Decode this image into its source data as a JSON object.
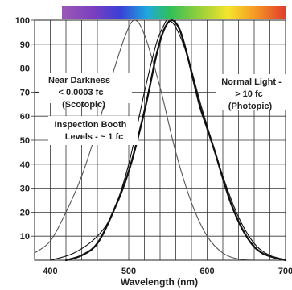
{
  "chart_data": {
    "type": "line",
    "title": "",
    "xlabel": "Wavelength (nm)",
    "ylabel": "",
    "xlim": [
      380,
      700
    ],
    "ylim": [
      0,
      100
    ],
    "x_ticks": [
      400,
      500,
      600,
      700
    ],
    "y_ticks": [
      10,
      20,
      30,
      40,
      50,
      60,
      70,
      80,
      90,
      100
    ],
    "grid": true,
    "spectrum_bar": true,
    "series": [
      {
        "key": "scotopic",
        "color": "#555555",
        "points": [
          [
            380,
            3
          ],
          [
            400,
            8
          ],
          [
            420,
            20
          ],
          [
            440,
            35
          ],
          [
            460,
            55
          ],
          [
            480,
            78
          ],
          [
            495,
            93
          ],
          [
            507,
            100
          ],
          [
            520,
            94
          ],
          [
            540,
            72
          ],
          [
            560,
            45
          ],
          [
            580,
            24
          ],
          [
            600,
            10
          ],
          [
            620,
            3
          ],
          [
            640,
            0.5
          ],
          [
            660,
            0
          ]
        ]
      },
      {
        "key": "photopic",
        "color": "#111111",
        "points": [
          [
            420,
            0
          ],
          [
            440,
            2
          ],
          [
            460,
            7
          ],
          [
            480,
            20
          ],
          [
            500,
            37
          ],
          [
            520,
            62
          ],
          [
            535,
            85
          ],
          [
            545,
            96
          ],
          [
            555,
            100
          ],
          [
            565,
            96
          ],
          [
            575,
            85
          ],
          [
            590,
            65
          ],
          [
            600,
            55
          ],
          [
            610,
            45
          ],
          [
            630,
            24
          ],
          [
            650,
            10
          ],
          [
            670,
            3
          ],
          [
            700,
            0
          ]
        ]
      },
      {
        "key": "booth",
        "color": "#111111",
        "points": [
          [
            400,
            0
          ],
          [
            430,
            3
          ],
          [
            460,
            10
          ],
          [
            480,
            20
          ],
          [
            500,
            40
          ],
          [
            520,
            70
          ],
          [
            535,
            90
          ],
          [
            545,
            98
          ],
          [
            550,
            100
          ],
          [
            560,
            97
          ],
          [
            575,
            85
          ],
          [
            590,
            67
          ],
          [
            600,
            56
          ],
          [
            620,
            35
          ],
          [
            640,
            18
          ],
          [
            660,
            7
          ],
          [
            680,
            2
          ],
          [
            700,
            0
          ]
        ]
      }
    ],
    "annotations": [
      {
        "lines": [
          "Near Darkness",
          "< 0.0003 fc",
          "(Scotopic)"
        ]
      },
      {
        "lines": [
          "Normal Light -",
          "> 10 fc",
          "(Photopic)"
        ]
      },
      {
        "lines": [
          "Inspection Booth",
          "Levels - ~ 1 fc"
        ]
      }
    ]
  }
}
